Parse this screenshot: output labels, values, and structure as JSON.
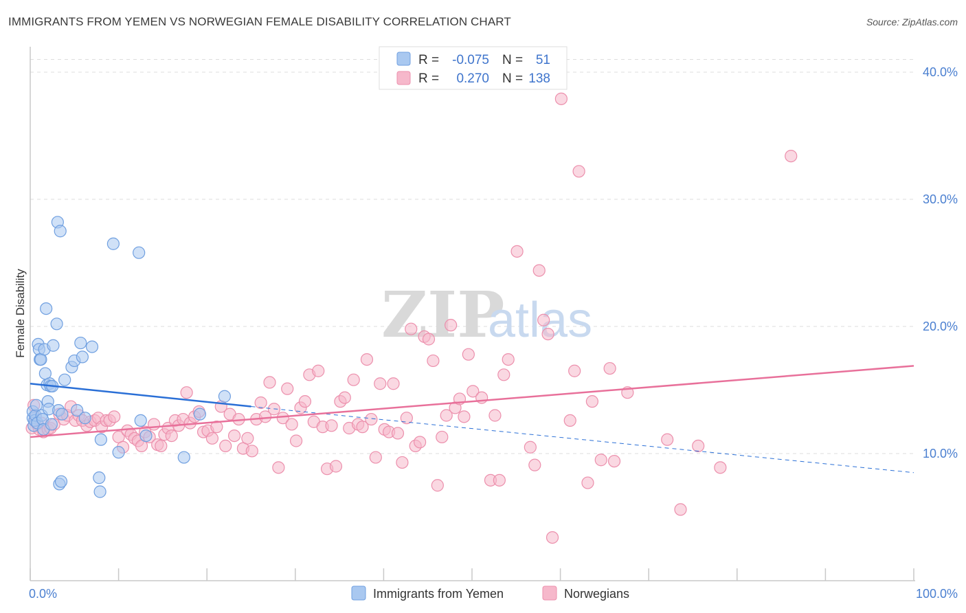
{
  "title": "IMMIGRANTS FROM YEMEN VS NORWEGIAN FEMALE DISABILITY CORRELATION CHART",
  "source": "Source: ZipAtlas.com",
  "watermark": {
    "zip": "ZIP",
    "atlas": "atlas"
  },
  "colors": {
    "blue_fill": "#a9c8f0",
    "blue_stroke": "#6f9fe0",
    "blue_line": "#2a6fd6",
    "pink_fill": "#f6b8cb",
    "pink_stroke": "#ec8fac",
    "pink_line": "#e8709a",
    "grid": "#dddddd",
    "tick_text": "#4a7fd0"
  },
  "legend": {
    "rows": [
      {
        "r_label": "R =",
        "r_value": "-0.075",
        "n_label": "N =",
        "n_value": "51"
      },
      {
        "r_label": "R =",
        "r_value": "0.270",
        "n_label": "N =",
        "n_value": "138"
      }
    ]
  },
  "bottom_legend": [
    "Immigrants from Yemen",
    "Norwegians"
  ],
  "chart_data": {
    "type": "scatter",
    "xlabel": "",
    "ylabel": "Female Disability",
    "xlim": [
      0,
      100
    ],
    "ylim": [
      0,
      42
    ],
    "x_tick_labels": [
      "0.0%",
      "100.0%"
    ],
    "y_ticks": [
      10,
      20,
      30,
      40
    ],
    "y_tick_labels": [
      "10.0%",
      "20.0%",
      "30.0%",
      "40.0%"
    ],
    "grid": true,
    "legend_position": "top-center",
    "series": [
      {
        "name": "Immigrants from Yemen",
        "R": -0.075,
        "N": 51,
        "trend": {
          "x0": 0,
          "y0": 15.5,
          "x1": 25,
          "y1": 13.7,
          "dashed_to_x": 100,
          "dashed_y": 8.5
        },
        "points": [
          [
            0.3,
            12.8
          ],
          [
            0.3,
            13.3
          ],
          [
            0.4,
            12.2
          ],
          [
            0.5,
            12.6
          ],
          [
            0.6,
            13.0
          ],
          [
            0.7,
            13.8
          ],
          [
            0.8,
            12.4
          ],
          [
            0.9,
            18.6
          ],
          [
            1.0,
            18.2
          ],
          [
            1.1,
            17.4
          ],
          [
            1.2,
            17.4
          ],
          [
            1.3,
            13.0
          ],
          [
            1.4,
            12.7
          ],
          [
            1.5,
            11.9
          ],
          [
            1.6,
            18.2
          ],
          [
            1.7,
            16.3
          ],
          [
            1.8,
            21.4
          ],
          [
            1.9,
            15.4
          ],
          [
            2.0,
            14.1
          ],
          [
            2.1,
            13.5
          ],
          [
            2.2,
            15.5
          ],
          [
            2.3,
            15.3
          ],
          [
            2.4,
            12.3
          ],
          [
            2.5,
            15.3
          ],
          [
            2.6,
            18.5
          ],
          [
            3.0,
            20.2
          ],
          [
            3.1,
            28.2
          ],
          [
            3.2,
            13.4
          ],
          [
            3.3,
            7.6
          ],
          [
            3.4,
            27.5
          ],
          [
            3.5,
            7.8
          ],
          [
            3.9,
            15.8
          ],
          [
            4.7,
            16.8
          ],
          [
            5.0,
            17.3
          ],
          [
            5.3,
            13.4
          ],
          [
            5.7,
            18.7
          ],
          [
            5.9,
            17.6
          ],
          [
            6.2,
            12.8
          ],
          [
            7.0,
            18.4
          ],
          [
            7.8,
            8.1
          ],
          [
            7.9,
            7.0
          ],
          [
            8.0,
            11.1
          ],
          [
            9.4,
            26.5
          ],
          [
            10.0,
            10.1
          ],
          [
            12.3,
            25.8
          ],
          [
            12.5,
            12.6
          ],
          [
            13.1,
            11.4
          ],
          [
            17.4,
            9.7
          ],
          [
            19.2,
            13.1
          ],
          [
            22.0,
            14.5
          ],
          [
            3.6,
            13.1
          ]
        ]
      },
      {
        "name": "Norwegians",
        "R": 0.27,
        "N": 138,
        "trend": {
          "x0": 0,
          "y0": 11.3,
          "x1": 100,
          "y1": 16.9
        },
        "points": [
          [
            0.2,
            12.0
          ],
          [
            0.4,
            13.8
          ],
          [
            0.6,
            12.8
          ],
          [
            0.8,
            12.3
          ],
          [
            1.0,
            11.9
          ],
          [
            1.3,
            12.4
          ],
          [
            1.5,
            11.7
          ],
          [
            2.0,
            11.9
          ],
          [
            2.3,
            12.0
          ],
          [
            2.7,
            12.3
          ],
          [
            3.3,
            13.1
          ],
          [
            3.8,
            12.7
          ],
          [
            4.2,
            13.0
          ],
          [
            4.6,
            13.7
          ],
          [
            5.1,
            12.6
          ],
          [
            5.5,
            13.0
          ],
          [
            5.9,
            12.6
          ],
          [
            6.4,
            12.2
          ],
          [
            6.8,
            12.5
          ],
          [
            7.3,
            12.6
          ],
          [
            7.7,
            12.8
          ],
          [
            8.1,
            12.1
          ],
          [
            8.6,
            12.6
          ],
          [
            9.0,
            12.6
          ],
          [
            9.5,
            12.9
          ],
          [
            10.0,
            11.3
          ],
          [
            10.5,
            10.5
          ],
          [
            11.0,
            11.8
          ],
          [
            11.4,
            11.5
          ],
          [
            11.8,
            11.2
          ],
          [
            12.2,
            11.0
          ],
          [
            12.6,
            10.6
          ],
          [
            13.0,
            11.7
          ],
          [
            13.5,
            11.3
          ],
          [
            14.0,
            12.3
          ],
          [
            14.4,
            10.7
          ],
          [
            14.8,
            10.6
          ],
          [
            15.2,
            11.5
          ],
          [
            15.6,
            12.0
          ],
          [
            16.0,
            11.4
          ],
          [
            16.4,
            12.6
          ],
          [
            16.8,
            12.2
          ],
          [
            17.3,
            12.7
          ],
          [
            17.7,
            14.8
          ],
          [
            18.1,
            12.4
          ],
          [
            18.6,
            12.9
          ],
          [
            19.1,
            13.3
          ],
          [
            19.6,
            11.7
          ],
          [
            20.1,
            11.8
          ],
          [
            20.6,
            11.2
          ],
          [
            21.1,
            12.1
          ],
          [
            21.6,
            13.7
          ],
          [
            22.1,
            10.6
          ],
          [
            22.6,
            13.1
          ],
          [
            23.1,
            11.4
          ],
          [
            23.6,
            12.7
          ],
          [
            24.1,
            10.4
          ],
          [
            24.6,
            11.2
          ],
          [
            25.1,
            10.2
          ],
          [
            25.6,
            12.7
          ],
          [
            26.1,
            14.0
          ],
          [
            26.6,
            12.9
          ],
          [
            27.1,
            15.6
          ],
          [
            27.6,
            13.5
          ],
          [
            28.1,
            8.9
          ],
          [
            28.6,
            12.8
          ],
          [
            29.1,
            15.1
          ],
          [
            29.6,
            12.3
          ],
          [
            30.1,
            11.0
          ],
          [
            30.6,
            13.6
          ],
          [
            31.1,
            14.1
          ],
          [
            31.6,
            16.2
          ],
          [
            32.1,
            12.5
          ],
          [
            32.6,
            16.5
          ],
          [
            33.1,
            12.1
          ],
          [
            33.6,
            8.8
          ],
          [
            34.1,
            12.2
          ],
          [
            34.6,
            9.0
          ],
          [
            35.1,
            14.1
          ],
          [
            35.6,
            14.4
          ],
          [
            36.1,
            12.0
          ],
          [
            36.6,
            15.8
          ],
          [
            37.1,
            12.3
          ],
          [
            37.6,
            12.1
          ],
          [
            38.1,
            17.4
          ],
          [
            38.6,
            12.7
          ],
          [
            39.1,
            9.7
          ],
          [
            39.6,
            15.5
          ],
          [
            40.1,
            11.9
          ],
          [
            40.6,
            11.7
          ],
          [
            41.1,
            15.5
          ],
          [
            41.6,
            11.6
          ],
          [
            42.1,
            9.3
          ],
          [
            42.6,
            12.8
          ],
          [
            43.1,
            19.8
          ],
          [
            43.6,
            10.6
          ],
          [
            44.1,
            10.9
          ],
          [
            44.6,
            19.2
          ],
          [
            45.1,
            19.0
          ],
          [
            45.6,
            17.3
          ],
          [
            46.1,
            7.5
          ],
          [
            46.6,
            11.3
          ],
          [
            47.1,
            13.0
          ],
          [
            47.6,
            20.1
          ],
          [
            48.1,
            13.6
          ],
          [
            48.6,
            14.3
          ],
          [
            49.1,
            12.9
          ],
          [
            49.6,
            17.8
          ],
          [
            50.1,
            14.9
          ],
          [
            51.1,
            14.4
          ],
          [
            52.1,
            7.9
          ],
          [
            52.6,
            13.0
          ],
          [
            53.1,
            7.9
          ],
          [
            53.6,
            16.2
          ],
          [
            54.1,
            17.4
          ],
          [
            55.1,
            25.9
          ],
          [
            56.6,
            10.5
          ],
          [
            57.1,
            9.1
          ],
          [
            57.6,
            24.4
          ],
          [
            58.1,
            20.5
          ],
          [
            58.6,
            19.4
          ],
          [
            59.1,
            3.4
          ],
          [
            60.1,
            37.9
          ],
          [
            61.1,
            12.6
          ],
          [
            61.6,
            16.5
          ],
          [
            62.1,
            32.2
          ],
          [
            63.1,
            7.7
          ],
          [
            63.6,
            14.1
          ],
          [
            64.6,
            9.5
          ],
          [
            65.6,
            16.7
          ],
          [
            66.1,
            9.4
          ],
          [
            67.6,
            14.8
          ],
          [
            72.1,
            11.1
          ],
          [
            73.6,
            5.6
          ],
          [
            75.6,
            10.6
          ],
          [
            78.1,
            8.9
          ],
          [
            86.1,
            33.4
          ]
        ]
      }
    ]
  }
}
